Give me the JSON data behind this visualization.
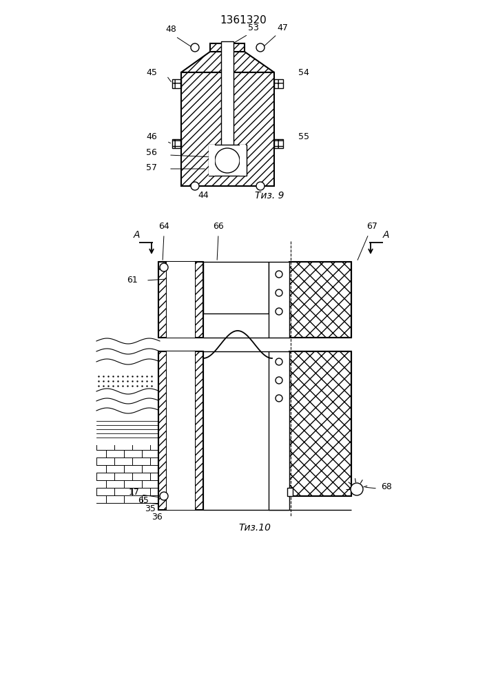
{
  "title": "1361320",
  "title_fontsize": 11,
  "fig9_label": "Τиз. 9",
  "fig10_label": "Τиз.10",
  "background_color": "#ffffff",
  "line_color": "#000000"
}
